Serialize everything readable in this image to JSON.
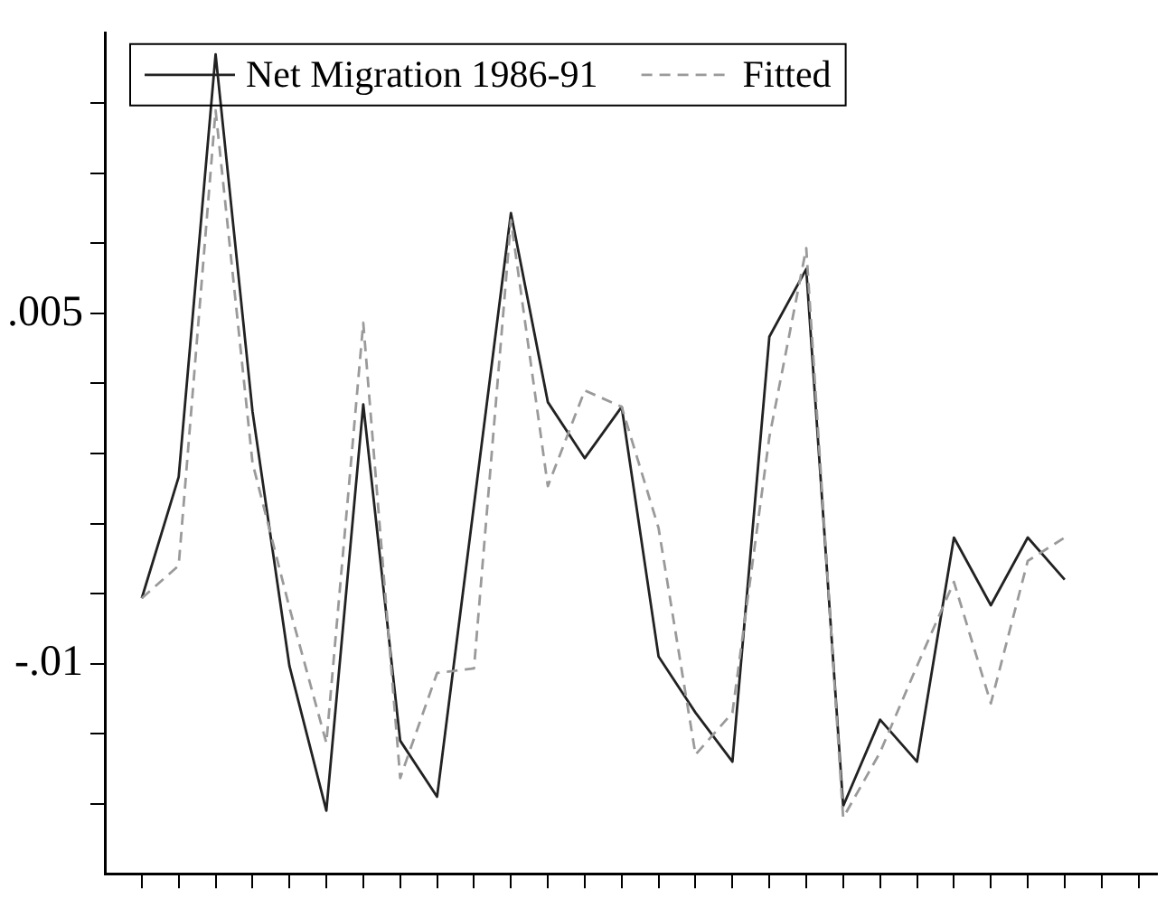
{
  "chart_data": {
    "type": "line",
    "categories": [
      null,
      null,
      null,
      null,
      null,
      null,
      null,
      null,
      null,
      null,
      null,
      null,
      null,
      null,
      null,
      null,
      null,
      null,
      null,
      null,
      null,
      null,
      null,
      null,
      null,
      null,
      null,
      null
    ],
    "series": [
      {
        "name": "Net Migration 1986-91",
        "color": "#222222",
        "line_style": "solid",
        "values": [
          -0.0072,
          -0.002,
          0.0161,
          0.0008,
          -0.0101,
          -0.0163,
          0.0011,
          -0.0133,
          -0.0157,
          -0.0032,
          0.0093,
          0.0012,
          -0.0012,
          0.001,
          -0.0097,
          -0.0121,
          -0.0142,
          0.004,
          0.0069,
          -0.0161,
          -0.0124,
          -0.0142,
          -0.0046,
          -0.0075,
          -0.0046,
          -0.0064,
          null,
          null
        ]
      },
      {
        "name": "Fitted",
        "color": "#9a9a9a",
        "line_style": "dashed",
        "values": [
          -0.0072,
          -0.0058,
          0.0137,
          -0.0014,
          -0.0076,
          -0.0134,
          0.0046,
          -0.0149,
          -0.0104,
          -0.0102,
          0.009,
          -0.0024,
          0.0017,
          0.001,
          -0.0042,
          -0.0139,
          -0.0121,
          -0.0003,
          0.0078,
          -0.0166,
          -0.0138,
          -0.0101,
          -0.0065,
          -0.0117,
          -0.0056,
          -0.0046,
          null,
          null
        ]
      }
    ],
    "ylim": [
      -0.019,
      0.017
    ],
    "yticks": [
      {
        "value": -0.016,
        "label": null
      },
      {
        "value": -0.013,
        "label": null
      },
      {
        "value": -0.01,
        "label": "-.01"
      },
      {
        "value": -0.007,
        "label": null
      },
      {
        "value": -0.004,
        "label": null
      },
      {
        "value": -0.001,
        "label": null
      },
      {
        "value": 0.002,
        "label": null
      },
      {
        "value": 0.005,
        "label": ".005"
      },
      {
        "value": 0.008,
        "label": null
      },
      {
        "value": 0.011,
        "label": null
      },
      {
        "value": 0.014,
        "label": null
      }
    ],
    "tick_labels": "y",
    "grid": false,
    "legend": "top left",
    "marker": "none"
  }
}
